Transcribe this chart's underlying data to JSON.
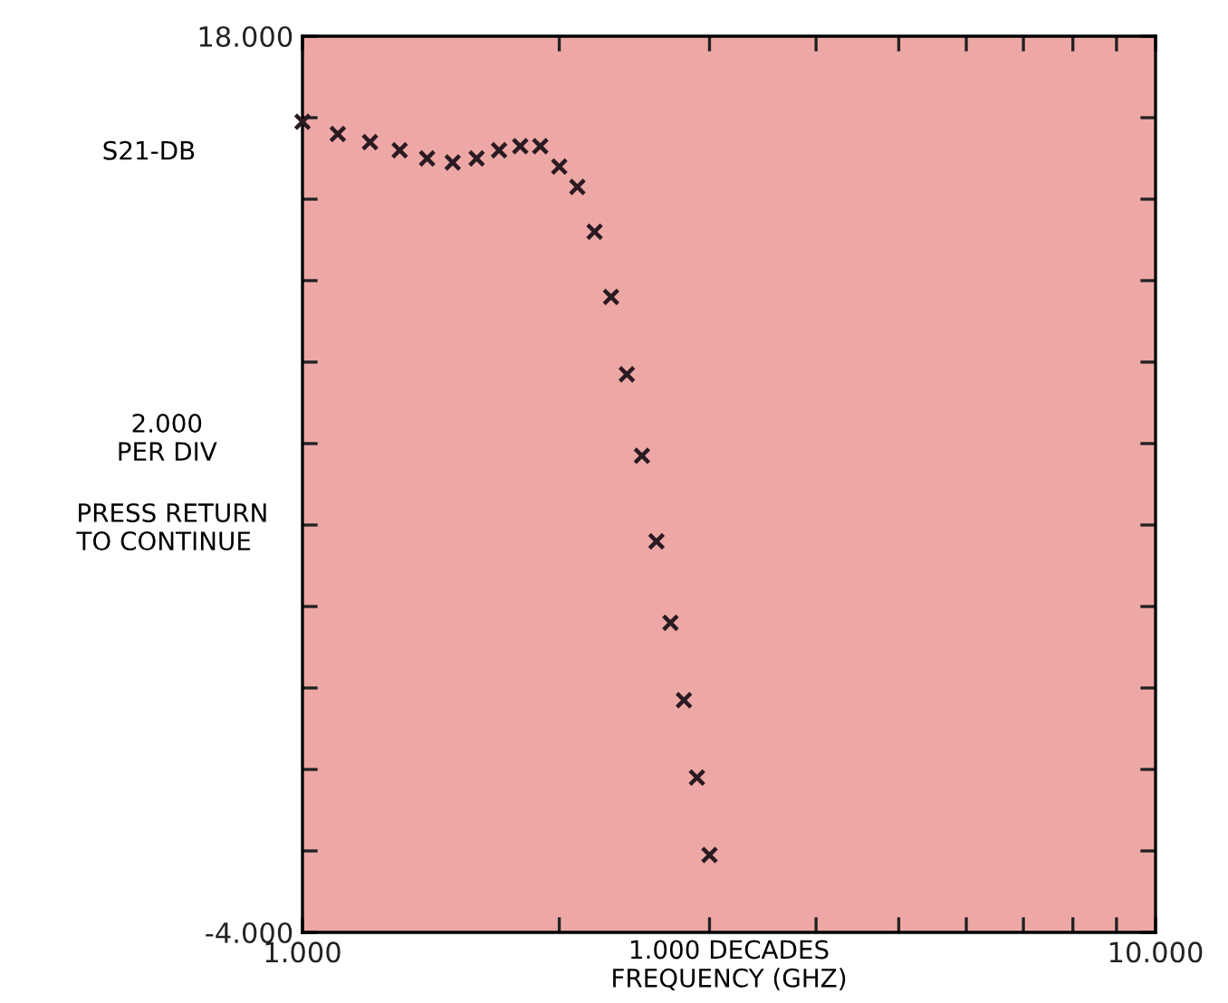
{
  "chart_data": {
    "type": "scatter",
    "xlabel": "FREQUENCY (GHZ)",
    "ylabel": "S21-DB",
    "log": "x",
    "marker": "cross",
    "grid": false,
    "x": [
      1.0,
      1.1,
      1.2,
      1.3,
      1.4,
      1.5,
      1.6,
      1.7,
      1.8,
      1.9,
      2.0,
      2.1,
      2.2,
      2.3,
      2.4,
      2.5,
      2.6,
      2.7,
      2.8,
      2.9,
      3.0
    ],
    "series": [
      {
        "color": "#2a1a22",
        "values": [
          15.9,
          15.6,
          15.4,
          15.2,
          15.0,
          14.9,
          15.0,
          15.2,
          15.3,
          15.3,
          14.8,
          14.3,
          13.2,
          11.6,
          9.7,
          7.7,
          5.6,
          3.6,
          1.7,
          -0.2,
          -2.1
        ]
      }
    ],
    "xlim": [
      1,
      10
    ],
    "xticks": [
      {
        "value": 1,
        "label": "1.000"
      },
      {
        "value": 2,
        "label": null
      },
      {
        "value": 3,
        "label": null
      },
      {
        "value": 4,
        "label": null
      },
      {
        "value": 5,
        "label": null
      },
      {
        "value": 6,
        "label": null
      },
      {
        "value": 7,
        "label": null
      },
      {
        "value": 8,
        "label": null
      },
      {
        "value": 9,
        "label": null
      },
      {
        "value": 10,
        "label": "10.000"
      }
    ],
    "ylim": [
      -4,
      18
    ],
    "yticks": [
      {
        "value": -4,
        "label": "-4.000"
      },
      {
        "value": -2,
        "label": null
      },
      {
        "value": 0,
        "label": null
      },
      {
        "value": 2,
        "label": null
      },
      {
        "value": 4,
        "label": null
      },
      {
        "value": 6,
        "label": null
      },
      {
        "value": 8,
        "label": null
      },
      {
        "value": 10,
        "label": null
      },
      {
        "value": 12,
        "label": null
      },
      {
        "value": 14,
        "label": null
      },
      {
        "value": 16,
        "label": null
      },
      {
        "value": 18,
        "label": "18.000"
      }
    ],
    "annotations": [
      "2.000\nPER DIV",
      "PRESS RETURN\nTO CONTINUE",
      "1.000 DECADES"
    ]
  }
}
